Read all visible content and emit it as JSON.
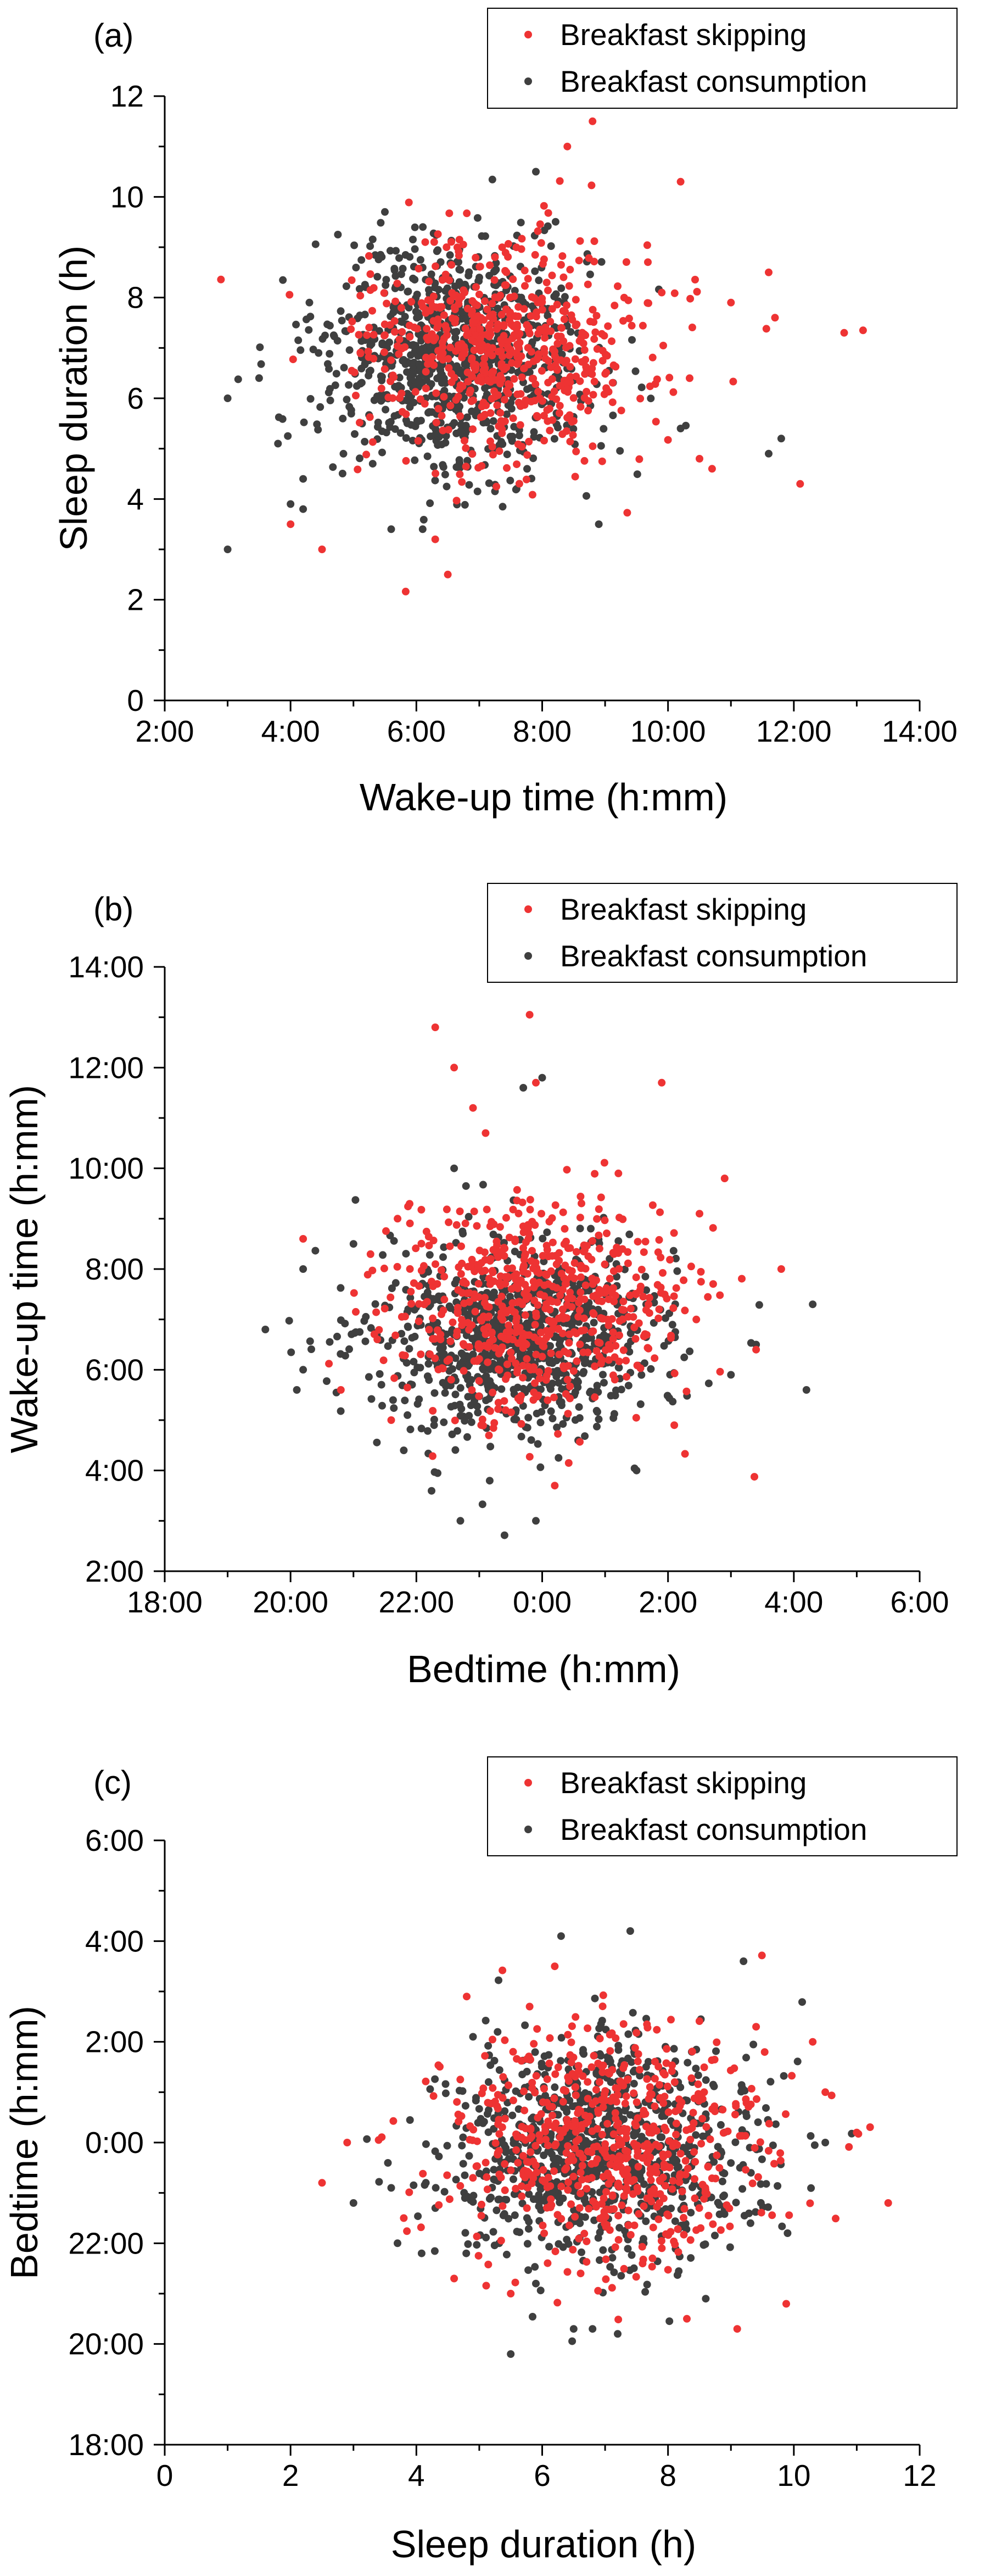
{
  "colors": {
    "skipping": "#EE3333",
    "consumption": "#3F3F3F",
    "axis": "#000000",
    "background": "#FFFFFF"
  },
  "chart_data": [
    {
      "panel": "(a)",
      "type": "scatter",
      "xlabel": "Wake-up time (h:mm)",
      "ylabel": "Sleep duration (h)",
      "xlim": [
        2,
        14
      ],
      "ylim": [
        0,
        12
      ],
      "x_ticks": [
        2,
        4,
        6,
        8,
        10,
        12,
        14
      ],
      "x_tick_labels": [
        "2:00",
        "4:00",
        "6:00",
        "8:00",
        "10:00",
        "12:00",
        "14:00"
      ],
      "y_ticks": [
        0,
        2,
        4,
        6,
        8,
        10,
        12
      ],
      "y_tick_labels": [
        "0",
        "2",
        "4",
        "6",
        "8",
        "10",
        "12"
      ],
      "legend_position": "top-right",
      "series": [
        {
          "name": "Breakfast skipping",
          "color": "#EE3333",
          "center": [
            7.3,
            7.0
          ],
          "spread": [
            1.15,
            1.15
          ],
          "count": 620,
          "outliers": [
            [
              8.8,
              11.5
            ],
            [
              8.4,
              11.0
            ],
            [
              10.2,
              10.3
            ],
            [
              11.0,
              7.9
            ],
            [
              11.6,
              8.5
            ],
            [
              11.7,
              7.6
            ],
            [
              12.8,
              7.3
            ],
            [
              13.1,
              7.35
            ],
            [
              12.1,
              4.3
            ],
            [
              10.7,
              4.6
            ],
            [
              10.5,
              4.8
            ],
            [
              6.5,
              2.5
            ],
            [
              4.5,
              3.0
            ],
            [
              4.0,
              3.5
            ],
            [
              6.3,
              3.2
            ],
            [
              9.9,
              8.1
            ]
          ]
        },
        {
          "name": "Breakfast consumption",
          "color": "#3F3F3F",
          "center": [
            6.6,
            6.8
          ],
          "spread": [
            1.05,
            1.1
          ],
          "count": 900,
          "outliers": [
            [
              3.0,
              3.0
            ],
            [
              3.0,
              6.0
            ],
            [
              3.5,
              6.4
            ],
            [
              4.0,
              3.9
            ],
            [
              3.8,
              5.1
            ],
            [
              4.2,
              4.4
            ],
            [
              4.2,
              3.8
            ],
            [
              7.9,
              10.5
            ],
            [
              8.9,
              3.5
            ],
            [
              10.2,
              5.4
            ],
            [
              11.6,
              4.9
            ],
            [
              11.8,
              5.2
            ],
            [
              6.1,
              3.4
            ],
            [
              5.6,
              3.4
            ],
            [
              4.3,
              7.9
            ],
            [
              5.5,
              9.7
            ]
          ]
        }
      ]
    },
    {
      "panel": "(b)",
      "type": "scatter",
      "xlabel": "Bedtime (h:mm)",
      "ylabel": "Wake-up time (h:mm)",
      "xlim": [
        18,
        30
      ],
      "ylim": [
        2,
        14
      ],
      "x_ticks": [
        18,
        20,
        22,
        24,
        26,
        28,
        30
      ],
      "x_tick_labels": [
        "18:00",
        "20:00",
        "22:00",
        "0:00",
        "2:00",
        "4:00",
        "6:00"
      ],
      "y_ticks": [
        2,
        4,
        6,
        8,
        10,
        12,
        14
      ],
      "y_tick_labels": [
        "2:00",
        "4:00",
        "6:00",
        "8:00",
        "10:00",
        "12:00",
        "14:00"
      ],
      "legend_position": "top-right",
      "series": [
        {
          "name": "Breakfast skipping",
          "color": "#EE3333",
          "center": [
            23.9,
            7.3
          ],
          "spread": [
            1.15,
            1.05
          ],
          "count": 620,
          "outliers": [
            [
              22.3,
              12.8
            ],
            [
              22.6,
              12.0
            ],
            [
              22.9,
              11.2
            ],
            [
              23.8,
              13.05
            ],
            [
              23.9,
              11.7
            ],
            [
              25.9,
              11.7
            ],
            [
              23.1,
              10.7
            ],
            [
              26.9,
              9.8
            ],
            [
              27.8,
              8.0
            ],
            [
              20.2,
              8.6
            ],
            [
              27.4,
              6.4
            ],
            [
              20.8,
              5.6
            ],
            [
              26.1,
              4.9
            ],
            [
              24.2,
              3.7
            ],
            [
              21.6,
              5.0
            ],
            [
              26.5,
              9.1
            ]
          ]
        },
        {
          "name": "Breakfast consumption",
          "color": "#3F3F3F",
          "center": [
            23.5,
            6.6
          ],
          "spread": [
            1.2,
            0.95
          ],
          "count": 900,
          "outliers": [
            [
              19.6,
              6.8
            ],
            [
              20.1,
              5.6
            ],
            [
              20.2,
              6.0
            ],
            [
              20.2,
              8.0
            ],
            [
              21.0,
              8.5
            ],
            [
              22.7,
              3.0
            ],
            [
              23.9,
              3.0
            ],
            [
              24.0,
              11.8
            ],
            [
              23.7,
              11.6
            ],
            [
              28.3,
              7.3
            ],
            [
              28.2,
              5.6
            ],
            [
              27.0,
              5.9
            ],
            [
              21.8,
              4.4
            ],
            [
              27.4,
              6.5
            ],
            [
              25.5,
              4.0
            ],
            [
              22.6,
              10.0
            ]
          ]
        }
      ]
    },
    {
      "panel": "(c)",
      "type": "scatter",
      "xlabel": "Sleep duration (h)",
      "ylabel": "Bedtime (h:mm)",
      "xlim": [
        0,
        12
      ],
      "ylim": [
        18,
        30
      ],
      "x_ticks": [
        0,
        2,
        4,
        6,
        8,
        10,
        12
      ],
      "x_tick_labels": [
        "0",
        "2",
        "4",
        "6",
        "8",
        "10",
        "12"
      ],
      "y_ticks": [
        18,
        20,
        22,
        24,
        26,
        28,
        30
      ],
      "y_tick_labels": [
        "18:00",
        "20:00",
        "22:00",
        "0:00",
        "2:00",
        "4:00",
        "6:00"
      ],
      "legend_position": "top-right",
      "series": [
        {
          "name": "Breakfast skipping",
          "color": "#EE3333",
          "center": [
            7.1,
            24.0
          ],
          "spread": [
            1.2,
            1.15
          ],
          "count": 620,
          "outliers": [
            [
              2.5,
              23.2
            ],
            [
              2.9,
              24.0
            ],
            [
              3.4,
              24.05
            ],
            [
              11.5,
              22.8
            ],
            [
              11.0,
              24.2
            ],
            [
              10.3,
              26.0
            ],
            [
              9.1,
              20.3
            ],
            [
              8.3,
              20.5
            ],
            [
              6.2,
              27.5
            ],
            [
              5.8,
              26.7
            ],
            [
              4.8,
              26.9
            ],
            [
              5.5,
              21.0
            ],
            [
              10.5,
              25.0
            ],
            [
              4.6,
              21.3
            ],
            [
              9.4,
              26.3
            ],
            [
              3.8,
              22.5
            ]
          ]
        },
        {
          "name": "Breakfast consumption",
          "color": "#3F3F3F",
          "center": [
            6.9,
            23.9
          ],
          "spread": [
            1.2,
            1.1
          ],
          "count": 900,
          "outliers": [
            [
              3.0,
              22.8
            ],
            [
              3.7,
              22.0
            ],
            [
              5.5,
              19.8
            ],
            [
              6.5,
              20.3
            ],
            [
              6.8,
              20.3
            ],
            [
              7.2,
              20.2
            ],
            [
              6.3,
              28.1
            ],
            [
              7.4,
              28.2
            ],
            [
              9.2,
              27.6
            ],
            [
              10.5,
              24.0
            ],
            [
              9.9,
              22.2
            ],
            [
              3.6,
              23.1
            ],
            [
              5.9,
              21.2
            ],
            [
              8.6,
              20.9
            ],
            [
              4.9,
              26.1
            ],
            [
              9.3,
              23.9
            ]
          ]
        }
      ]
    }
  ]
}
